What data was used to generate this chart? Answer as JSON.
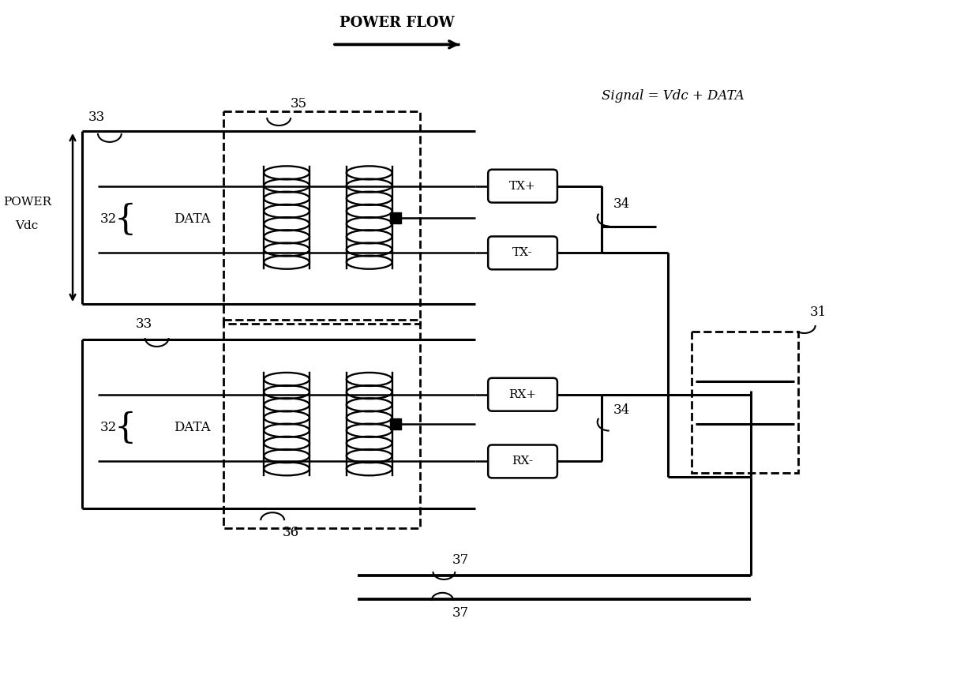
{
  "bg_color": "#ffffff",
  "lc": "#000000",
  "power_flow_text": "POWER FLOW",
  "signal_text": "Signal = Vdc + DATA",
  "power_label_1": "POWER",
  "power_label_2": "Vdc",
  "labels": {
    "data": "DATA",
    "tx_plus": "TX+",
    "tx_minus": "TX-",
    "rx_plus": "RX+",
    "rx_minus": "RX-",
    "n33": "33",
    "n32": "32",
    "n34": "34",
    "n35": "35",
    "n36": "36",
    "n31": "31",
    "n37": "37"
  },
  "fig_w": 12.4,
  "fig_h": 8.55,
  "dpi": 100
}
